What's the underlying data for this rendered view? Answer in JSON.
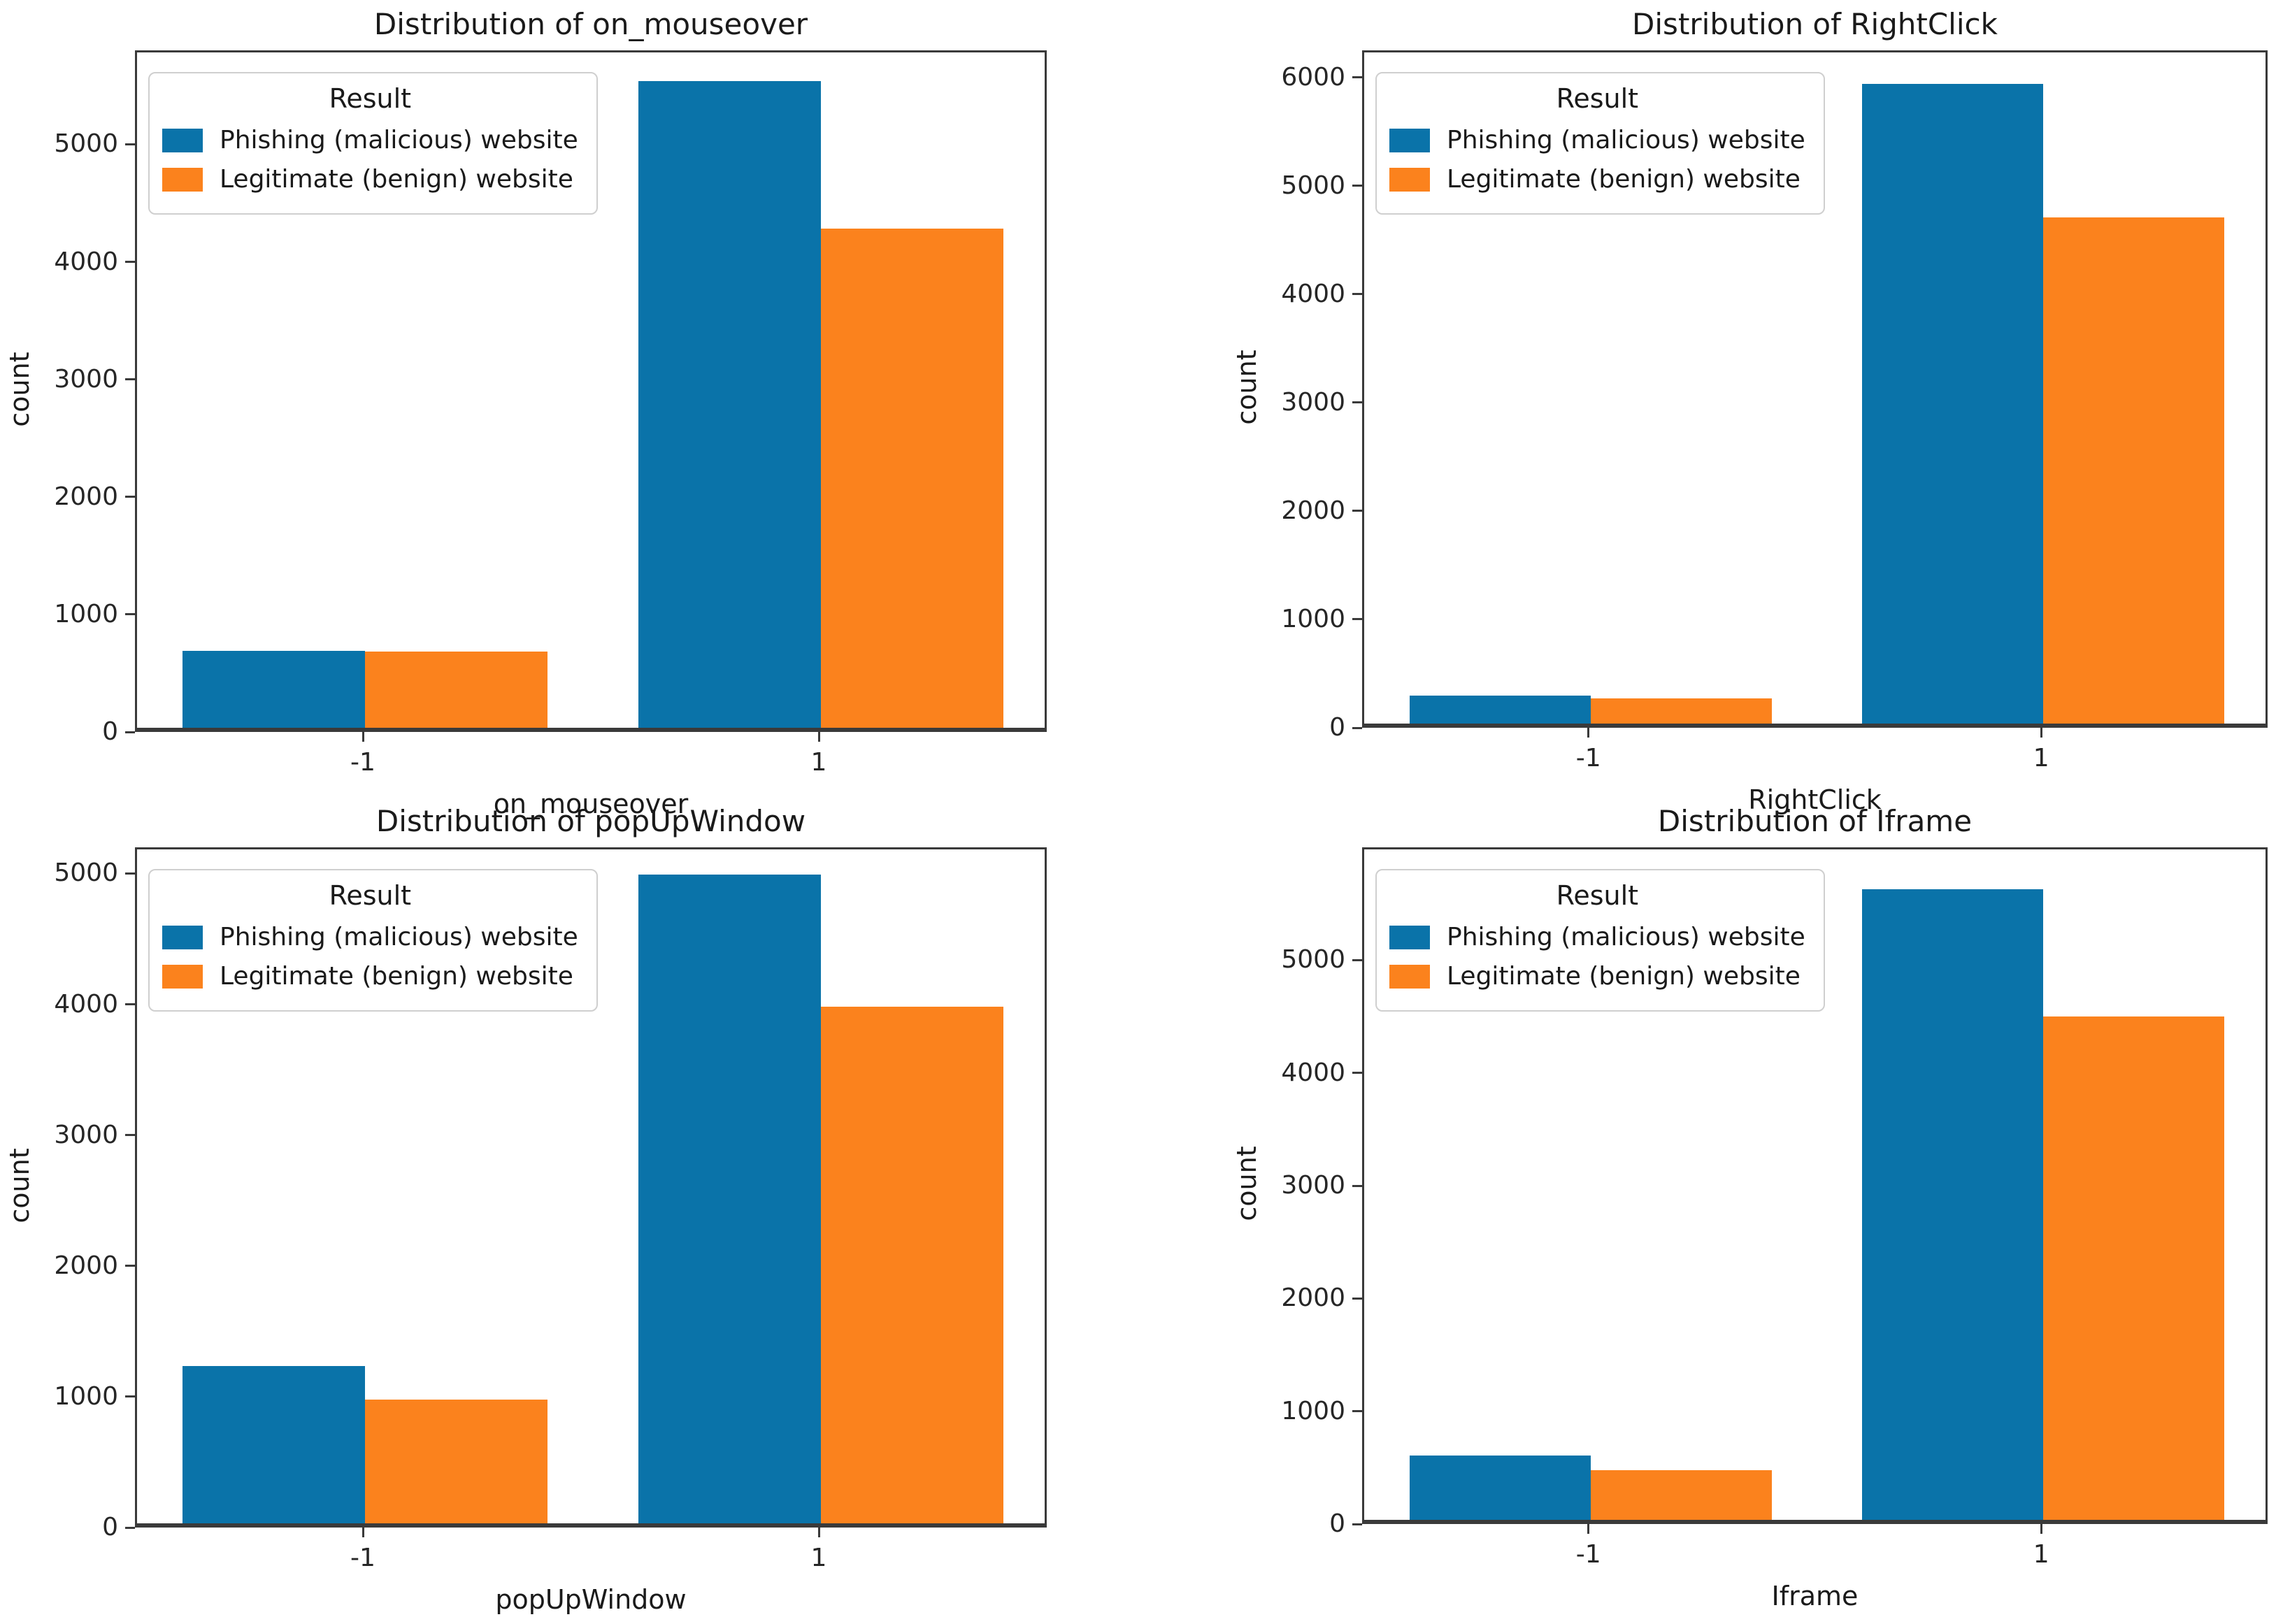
{
  "figure": {
    "background": "#ffffff"
  },
  "style": {
    "text_color": "#262626",
    "spine_color": "#3a3a3a",
    "phishing_color": "#0a73a9",
    "legitimate_color": "#fb821d"
  },
  "chart_data": [
    {
      "type": "bar",
      "title": "Distribution of on_mouseover",
      "xlabel": "on_mouseover",
      "ylabel": "count",
      "categories": [
        "-1",
        "1"
      ],
      "series": [
        {
          "name": "Phishing (malicious) website",
          "key": "phishing",
          "color": "#0a73a9",
          "values": [
            655,
            5500
          ]
        },
        {
          "name": "Legitimate (benign) website",
          "key": "legitimate",
          "color": "#fb821d",
          "values": [
            650,
            4245
          ]
        }
      ],
      "yticks": [
        0,
        1000,
        2000,
        3000,
        4000,
        5000
      ],
      "ylim": [
        0,
        5800
      ],
      "legend_title": "Result",
      "legend_position": "upper left",
      "grid": false
    },
    {
      "type": "bar",
      "title": "Distribution of RightClick",
      "xlabel": "RightClick",
      "ylabel": "count",
      "categories": [
        "-1",
        "1"
      ],
      "series": [
        {
          "name": "Phishing (malicious) website",
          "key": "phishing",
          "color": "#0a73a9",
          "values": [
            255,
            5900
          ]
        },
        {
          "name": "Legitimate (benign) website",
          "key": "legitimate",
          "color": "#fb821d",
          "values": [
            230,
            4670
          ]
        }
      ],
      "yticks": [
        0,
        1000,
        2000,
        3000,
        4000,
        5000,
        6000
      ],
      "ylim": [
        0,
        6250
      ],
      "legend_title": "Result",
      "legend_position": "upper left",
      "grid": false
    },
    {
      "type": "bar",
      "title": "Distribution of popUpWindow",
      "xlabel": "popUpWindow",
      "ylabel": "count",
      "categories": [
        "-1",
        "1"
      ],
      "series": [
        {
          "name": "Phishing (malicious) website",
          "key": "phishing",
          "color": "#0a73a9",
          "values": [
            1200,
            4960
          ]
        },
        {
          "name": "Legitimate (benign) website",
          "key": "legitimate",
          "color": "#fb821d",
          "values": [
            945,
            3950
          ]
        }
      ],
      "yticks": [
        0,
        1000,
        2000,
        3000,
        4000,
        5000
      ],
      "ylim": [
        0,
        5200
      ],
      "legend_title": "Result",
      "legend_position": "upper left",
      "grid": false
    },
    {
      "type": "bar",
      "title": "Distribution of Iframe",
      "xlabel": "Iframe",
      "ylabel": "count",
      "categories": [
        "-1",
        "1"
      ],
      "series": [
        {
          "name": "Phishing (malicious) website",
          "key": "phishing",
          "color": "#0a73a9",
          "values": [
            570,
            5590
          ]
        },
        {
          "name": "Legitimate (benign) website",
          "key": "legitimate",
          "color": "#fb821d",
          "values": [
            440,
            4460
          ]
        }
      ],
      "yticks": [
        0,
        1000,
        2000,
        3000,
        4000,
        5000
      ],
      "ylim": [
        0,
        6000
      ],
      "legend_title": "Result",
      "legend_position": "upper left",
      "grid": false
    }
  ]
}
